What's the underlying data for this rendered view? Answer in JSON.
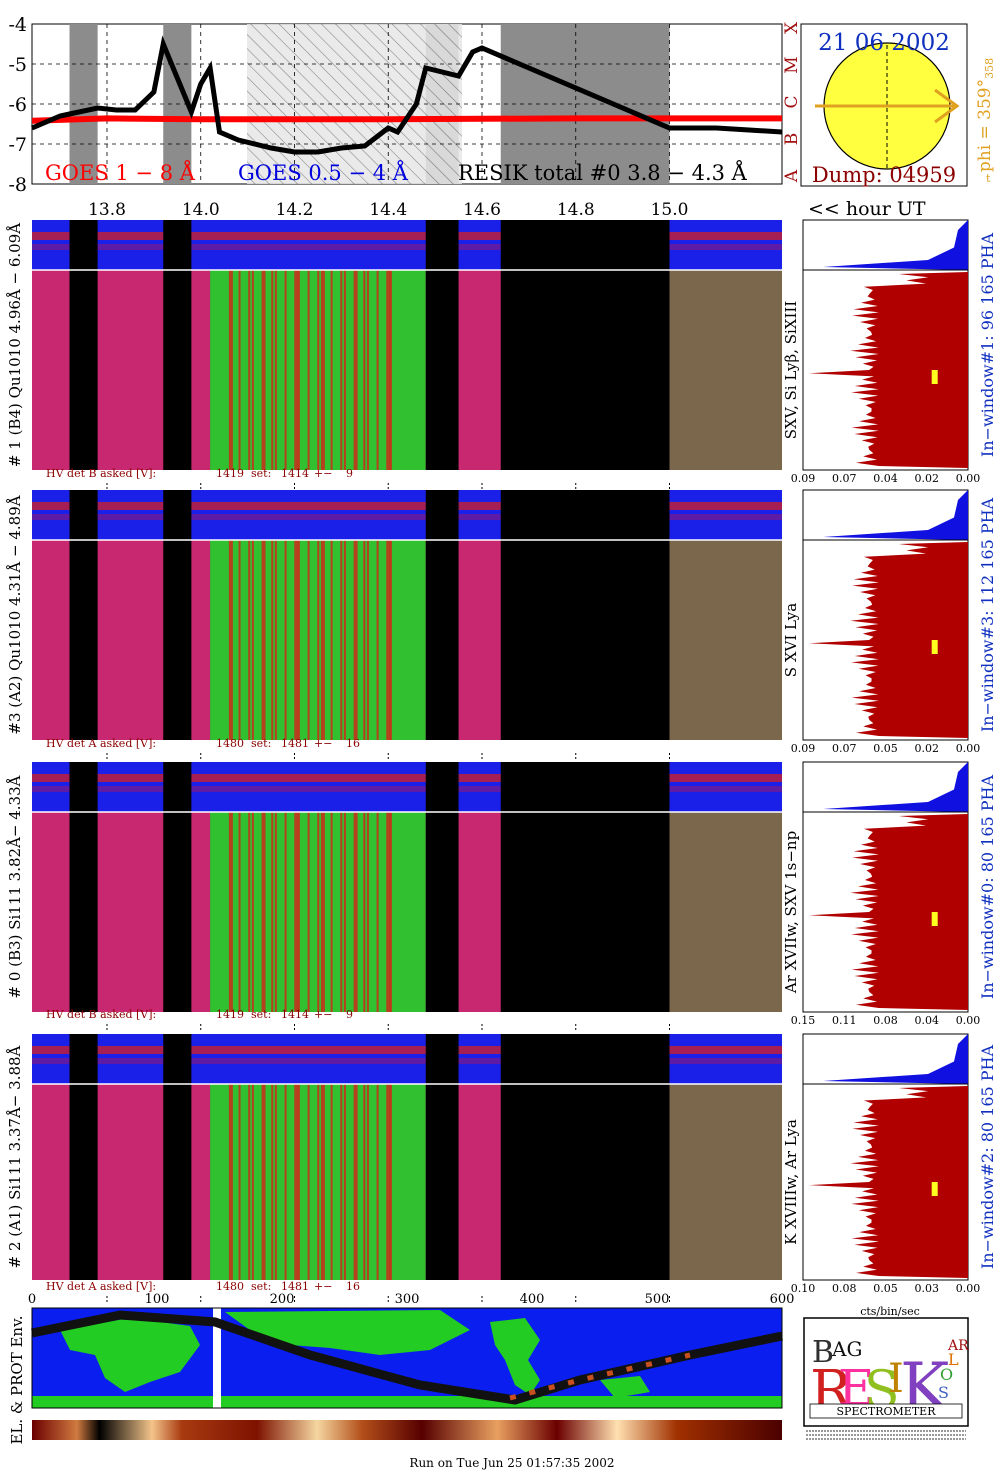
{
  "goes_panel": {
    "y_ticks": [
      "-4",
      "-5",
      "-6",
      "-7",
      "-8"
    ],
    "x_ticks": [
      "13.8",
      "14.0",
      "14.2",
      "14.4",
      "14.6",
      "14.8",
      "15.0"
    ],
    "class_letters": [
      "X",
      "M",
      "C",
      "B",
      "A"
    ],
    "legend_goes_long": "GOES 1 − 8 Å",
    "legend_goes_short": "GOES 0.5 − 4 Å",
    "legend_resik": "RESIK total #0  3.8 − 4.3 Å",
    "hour_label": "<< hour UT"
  },
  "sun_panel": {
    "date": "21 06 2002",
    "dump": "Dump: 04959",
    "phi": "phi = 359°",
    "phi_sub": "358",
    "marker": "t"
  },
  "detectors": [
    {
      "id": "d1",
      "label": "# 1 (B4) Qu1010 4.96Å − 6.09Å",
      "lines": "SXV, Si Lyβ, SiXIII",
      "hv": [
        "HV det B asked [V]:",
        "1419",
        "set:",
        "1414",
        "+−",
        "9"
      ],
      "window": "In−window#1:  96 165 PHA",
      "xticks": [
        "0.09",
        "0.07",
        "0.04",
        "0.02",
        "0.00"
      ]
    },
    {
      "id": "d3",
      "label": "#3 (A2) Qu1010  4.31Å − 4.89Å",
      "lines": "S XVI Lya",
      "hv": [
        "HV det A asked [V]:",
        "1480",
        "set:",
        "1481",
        "+−",
        "16"
      ],
      "window": "In−window#3:  112 165 PHA",
      "xticks": [
        "0.09",
        "0.07",
        "0.05",
        "0.02",
        "0.00"
      ]
    },
    {
      "id": "d0",
      "label": "# 0 (B3) Si111  3.82Å− 4.33Å",
      "lines": "Ar XVIIw, SXV 1s−np",
      "hv": [
        "HV det B asked [V]:",
        "1419",
        "set:",
        "1414",
        "+−",
        "9"
      ],
      "window": "In−window#0:   80 165 PHA",
      "xticks": [
        "0.15",
        "0.11",
        "0.08",
        "0.04",
        "0.00"
      ]
    },
    {
      "id": "d2",
      "label": "# 2 (A1) Si111  3.37Å− 3.88Å",
      "lines": "K XVIIIw, Ar Lya",
      "hv": [
        "HV det A asked [V]:",
        "1480",
        "set:",
        "1481",
        "+−",
        "16"
      ],
      "window": "In−window#2:   80 165 PHA",
      "xticks": [
        "0.10",
        "0.08",
        "0.05",
        "0.03",
        "0.00"
      ]
    }
  ],
  "spectrum_xlabel": "cts/bin/sec",
  "orbit": {
    "x_ticks": [
      "0",
      "100",
      "200",
      "300",
      "400",
      "500",
      "600"
    ],
    "ylabel": "EL. & PROT Env."
  },
  "logo": {
    "letters": [
      "B",
      "R",
      "AG",
      "E",
      "S",
      "I",
      "K",
      "S",
      "O",
      "L",
      "AR"
    ],
    "caption": "SPECTROMETER"
  },
  "footer": "Run on Tue Jun 25 01:57:35 2002",
  "chart_data": {
    "type": "line",
    "title": "",
    "xlabel": "<< hour UT",
    "ylabel": "",
    "xlim": [
      13.64,
      15.24
    ],
    "ylim": [
      -8,
      -4
    ],
    "x_ticks": [
      13.8,
      14.0,
      14.2,
      14.4,
      14.6,
      14.8,
      15.0
    ],
    "y_ticks": [
      -8,
      -7,
      -6,
      -5,
      -4
    ],
    "data_gaps": [
      [
        13.72,
        13.78
      ],
      [
        13.92,
        13.98
      ],
      [
        14.48,
        14.55
      ],
      [
        14.64,
        15.0
      ]
    ],
    "series": [
      {
        "name": "GOES 1 − 8 Å",
        "color": "#ff0000",
        "x": [
          13.64,
          13.8,
          14.0,
          14.2,
          14.4,
          14.6,
          14.8,
          15.0,
          15.24
        ],
        "y": [
          -6.42,
          -6.36,
          -6.38,
          -6.38,
          -6.38,
          -6.37,
          -6.36,
          -6.36,
          -6.36
        ]
      },
      {
        "name": "RESIK total #0  3.8 − 4.3 Å",
        "color": "#000000",
        "x": [
          13.64,
          13.7,
          13.72,
          13.78,
          13.82,
          13.86,
          13.9,
          13.92,
          13.98,
          14.0,
          14.02,
          14.04,
          14.08,
          14.15,
          14.2,
          14.25,
          14.3,
          14.35,
          14.4,
          14.42,
          14.46,
          14.48,
          14.55,
          14.58,
          14.6,
          15.0,
          15.1,
          15.24
        ],
        "y": [
          -6.6,
          -6.3,
          -6.25,
          -6.1,
          -6.15,
          -6.15,
          -5.7,
          -4.5,
          -6.2,
          -5.5,
          -5.1,
          -6.7,
          -6.9,
          -7.1,
          -7.2,
          -7.2,
          -7.1,
          -7.05,
          -6.6,
          -6.7,
          -6.0,
          -5.1,
          -5.3,
          -4.7,
          -4.6,
          -6.6,
          -6.6,
          -6.7
        ]
      }
    ]
  }
}
